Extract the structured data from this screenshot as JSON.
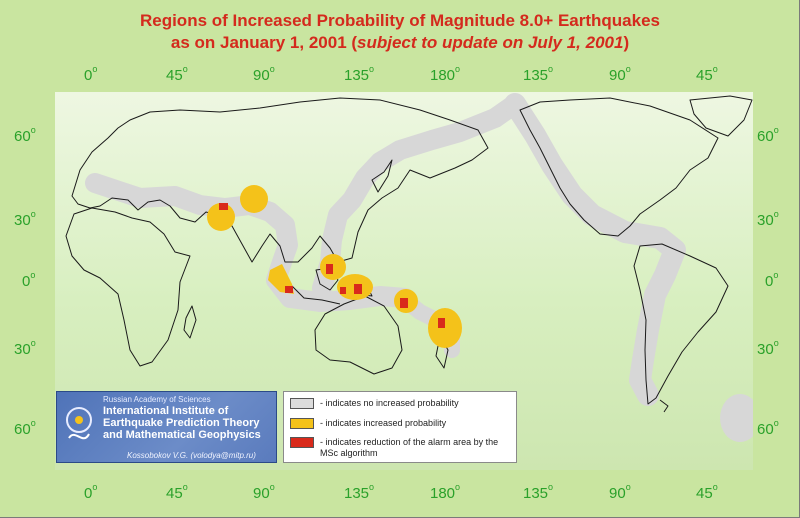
{
  "title": {
    "line1": "Regions of Increased Probability of Magnitude 8.0+ Earthquakes",
    "line2_prefix": "as on January 1, 2001 (",
    "line2_italic": "subject to update on July 1, 2001",
    "line2_suffix": ")"
  },
  "axes": {
    "top_longitudes": [
      "0",
      "45",
      "90",
      "135",
      "180",
      "135",
      "90",
      "45"
    ],
    "bottom_longitudes": [
      "0",
      "45",
      "90",
      "135",
      "180",
      "135",
      "90",
      "45"
    ],
    "degree_mark": "o",
    "left_latitudes": [
      "60",
      "30",
      "0",
      "30",
      "60"
    ],
    "right_latitudes": [
      "60",
      "30",
      "0",
      "30",
      "60"
    ]
  },
  "legend": {
    "items": [
      {
        "text": "- indicates no increased probability",
        "color": "#dcdcdc"
      },
      {
        "text": "- indicates increased probability",
        "color": "#f4c21a"
      },
      {
        "text": "- indicates reduction of the alarm area by the MSc algorithm",
        "color": "#d92a1b"
      }
    ]
  },
  "institute": {
    "academy": "Russian Academy of Sciences",
    "name": "International Institute of Earthquake Prediction Theory and Mathematical Geophysics",
    "author": "Kossobokov V.G. (volodya@mitp.ru)"
  },
  "colors": {
    "background": "#c9e5a0",
    "title": "#d42a1d",
    "axis_labels": "#2aa12a",
    "no_increase": "#dcdcdc",
    "increased": "#f4c21a",
    "reduced": "#d92a1b"
  }
}
